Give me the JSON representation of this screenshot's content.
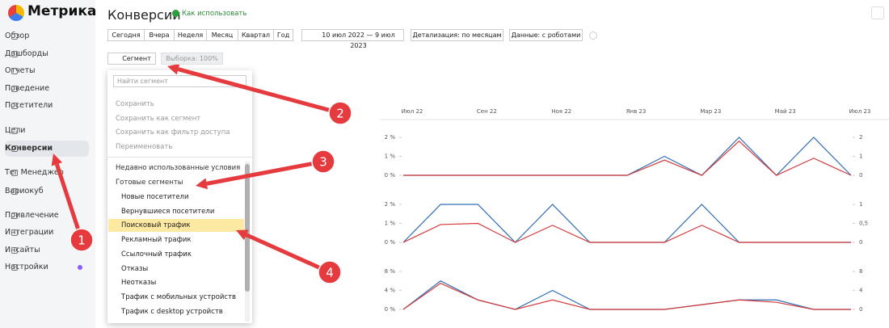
{
  "sidebar": {
    "logo": "Метрика",
    "nav": [
      "Обзор",
      "Дашборды",
      "Отчеты",
      "Поведение",
      "Посетители",
      "Цели",
      "Конверсии",
      "Тег Менеджер",
      "Вариокуб",
      "Привлечение",
      "Интеграции",
      "Инсайты",
      "Настройки"
    ],
    "active": 6
  },
  "header": {
    "title": "Конверсии",
    "help_link": "Как использовать"
  },
  "toolbar": {
    "periods": [
      "Сегодня",
      "Вчера",
      "Неделя",
      "Месяц",
      "Квартал",
      "Год"
    ],
    "date_range": "10 июл 2022 — 9 июл 2023",
    "detail": "Детализация: по месяцам",
    "data": "Данные: с роботами",
    "segment": "Сегмент",
    "sample": "Выборка: 100%"
  },
  "segment_menu": {
    "search_placeholder": "Найти сегмент",
    "actions": [
      "Сохранить",
      "Сохранить как сегмент",
      "Сохранить как фильтр доступа",
      "Переименовать"
    ],
    "groups": [
      "Недавно использованные условия",
      "Готовые сегменты"
    ],
    "segments": [
      "Новые посетители",
      "Вернувшиеся посетители",
      "Поисковый трафик",
      "Рекламный трафик",
      "Ссылочный трафик",
      "Отказы",
      "Неотказы",
      "Трафик с мобильных устройств",
      "Трафик с desktop устройств"
    ],
    "selected": 2
  },
  "callouts": [
    "1",
    "2",
    "3",
    "4"
  ],
  "chart_data": [
    {
      "type": "line",
      "categories": [
        "Июл 22",
        null,
        "Сен 22",
        null,
        "Ноя 22",
        null,
        "Янв 23",
        null,
        "Мар 23",
        null,
        "Май 23",
        null,
        "Июл 23"
      ],
      "ylim": [
        0,
        2
      ],
      "yticks": [
        {
          "value": 0,
          "label": "0 %"
        },
        {
          "value": 1,
          "label": "1 %"
        },
        {
          "value": 2,
          "label": "2 %"
        }
      ],
      "y2lim": [
        0,
        2
      ],
      "y2ticks": [
        0,
        1,
        2
      ],
      "series": [
        {
          "color": "#2f6db5",
          "values": [
            0,
            0,
            0,
            0,
            0,
            0,
            0,
            1,
            0,
            2,
            0,
            2,
            0
          ]
        },
        {
          "color": "#d33a3a",
          "axis": "y2",
          "values": [
            0,
            0,
            0,
            0,
            0,
            0,
            0,
            0.8,
            0,
            1.8,
            0,
            0.9,
            0
          ]
        }
      ]
    },
    {
      "type": "line",
      "ylim": [
        0,
        2
      ],
      "yticks": [
        {
          "value": 0,
          "label": "0 %"
        },
        {
          "value": 1,
          "label": "1 %"
        },
        {
          "value": 2,
          "label": "2 %"
        }
      ],
      "y2lim": [
        0,
        1
      ],
      "y2ticks": [
        0,
        {
          "value": 0.5,
          "label": "0,5"
        },
        1
      ],
      "series": [
        {
          "color": "#2f6db5",
          "values": [
            0,
            2,
            2,
            0,
            2,
            0,
            0,
            0,
            2,
            0,
            0,
            0,
            0
          ]
        },
        {
          "color": "#d33a3a",
          "axis": "y2",
          "values": [
            0,
            0.47,
            0.5,
            0,
            0.45,
            0,
            0,
            0,
            0.45,
            0,
            0,
            0,
            0
          ]
        }
      ]
    },
    {
      "type": "line",
      "ylim": [
        0,
        8
      ],
      "yticks": [
        {
          "value": 0,
          "label": "0 %"
        },
        {
          "value": 4,
          "label": "4 %"
        },
        {
          "value": 8,
          "label": "8 %"
        }
      ],
      "y2lim": [
        0,
        8
      ],
      "y2ticks": [
        0,
        4,
        8
      ],
      "series": [
        {
          "color": "#2f6db5",
          "values": [
            0,
            6,
            2,
            0,
            4,
            0,
            0,
            0,
            1,
            2,
            2,
            0,
            0
          ]
        },
        {
          "color": "#d33a3a",
          "axis": "y2",
          "values": [
            0,
            5.5,
            2,
            0,
            2,
            0,
            0,
            0,
            1,
            2,
            1.5,
            0,
            0
          ]
        }
      ]
    }
  ]
}
